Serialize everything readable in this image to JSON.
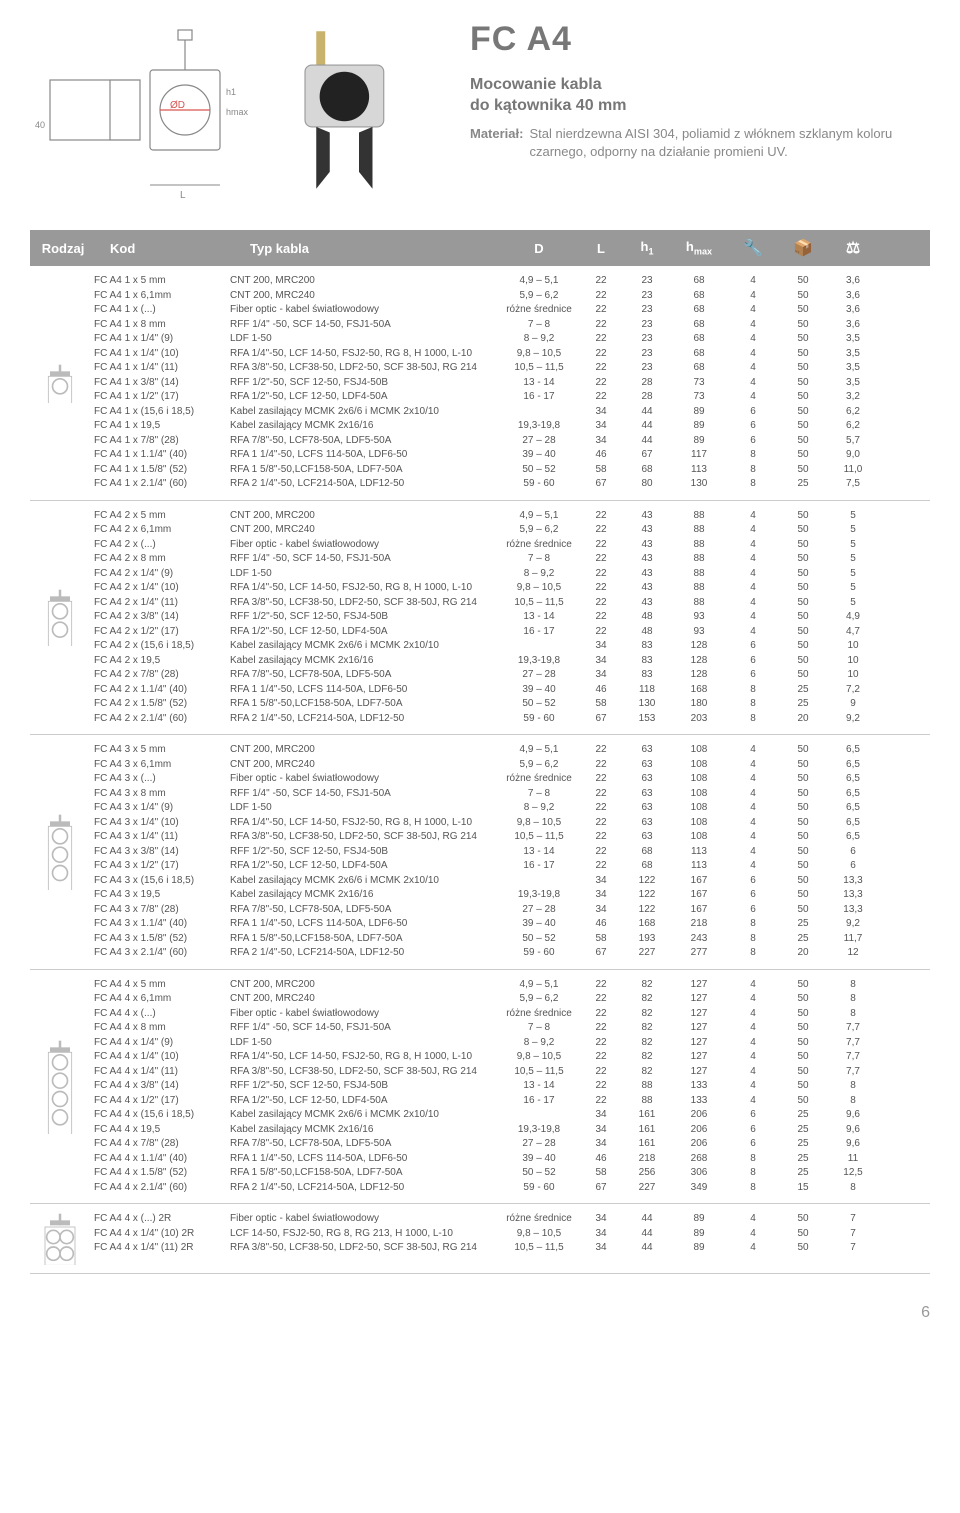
{
  "title": "FC A4",
  "subtitle": "Mocowanie kabla\ndo kątownika 40 mm",
  "material_label": "Materiał:",
  "material_text": "Stal nierdzewna AISI 304, poliamid z włóknem szklanym koloru czarnego, odporny na działanie promieni UV.",
  "page_number": "6",
  "diagram": {
    "labels": {
      "od": "ØD",
      "h1": "h1",
      "hmax": "hmax",
      "dim40": "40",
      "L": "L"
    },
    "stroke": "#888",
    "accent": "#d9534f"
  },
  "header": {
    "rodzaj": "Rodzaj",
    "kod": "Kod",
    "typ": "Typ kabla",
    "d": "D",
    "l": "L",
    "h1": "h1",
    "hmax": "hmax",
    "bg": "#999999",
    "fg": "#ffffff"
  },
  "icon_meta": {
    "wrench": "🔧",
    "box": "📦",
    "weight": "⚖"
  },
  "groups": [
    {
      "icon": "single",
      "rows": [
        [
          "FC A4 1 x 5 mm",
          "CNT 200, MRC200",
          "4,9 – 5,1",
          "22",
          "23",
          "68",
          "4",
          "50",
          "3,6"
        ],
        [
          "FC A4 1 x 6,1mm",
          "CNT 200, MRC240",
          "5,9 – 6,2",
          "22",
          "23",
          "68",
          "4",
          "50",
          "3,6"
        ],
        [
          "FC A4 1 x (...)",
          "Fiber optic - kabel światłowodowy",
          "różne średnice",
          "22",
          "23",
          "68",
          "4",
          "50",
          "3,6"
        ],
        [
          "FC A4 1 x 8 mm",
          "RFF 1/4\" -50, SCF 14-50, FSJ1-50A",
          "7 – 8",
          "22",
          "23",
          "68",
          "4",
          "50",
          "3,6"
        ],
        [
          "FC A4 1 x 1/4\" (9)",
          "LDF 1-50",
          "8 – 9,2",
          "22",
          "23",
          "68",
          "4",
          "50",
          "3,5"
        ],
        [
          "FC A4 1 x 1/4\" (10)",
          "RFA 1/4\"-50, LCF 14-50, FSJ2-50, RG 8, H 1000, L-10",
          "9,8 – 10,5",
          "22",
          "23",
          "68",
          "4",
          "50",
          "3,5"
        ],
        [
          "FC A4 1 x 1/4\" (11)",
          "RFA 3/8\"-50, LCF38-50, LDF2-50, SCF 38-50J, RG 214",
          "10,5 – 11,5",
          "22",
          "23",
          "68",
          "4",
          "50",
          "3,5"
        ],
        [
          "FC A4 1 x 3/8\" (14)",
          "RFF 1/2\"-50, SCF 12-50, FSJ4-50B",
          "13 - 14",
          "22",
          "28",
          "73",
          "4",
          "50",
          "3,5"
        ],
        [
          "FC A4 1 x 1/2\" (17)",
          "RFA 1/2\"-50, LCF 12-50, LDF4-50A",
          "16 - 17",
          "22",
          "28",
          "73",
          "4",
          "50",
          "3,2"
        ],
        [
          "FC A4 1 x (15,6 i 18,5)",
          "Kabel zasilający MCMK 2x6/6 i MCMK 2x10/10",
          "",
          "34",
          "44",
          "89",
          "6",
          "50",
          "6,2"
        ],
        [
          "FC A4 1 x 19,5",
          "Kabel zasilający MCMK 2x16/16",
          "19,3-19,8",
          "34",
          "44",
          "89",
          "6",
          "50",
          "6,2"
        ],
        [
          "FC A4 1 x 7/8\" (28)",
          "RFA 7/8\"-50, LCF78-50A, LDF5-50A",
          "27 – 28",
          "34",
          "44",
          "89",
          "6",
          "50",
          "5,7"
        ],
        [
          "FC A4 1 x 1.1/4\" (40)",
          "RFA 1 1/4\"-50, LCFS 114-50A, LDF6-50",
          "39 – 40",
          "46",
          "67",
          "117",
          "8",
          "50",
          "9,0"
        ],
        [
          "FC A4 1 x 1.5/8\" (52)",
          "RFA 1 5/8\"-50,LCF158-50A, LDF7-50A",
          "50 – 52",
          "58",
          "68",
          "113",
          "8",
          "50",
          "11,0"
        ],
        [
          "FC A4 1 x 2.1/4\" (60)",
          "RFA 2 1/4\"-50, LCF214-50A, LDF12-50",
          "59 - 60",
          "67",
          "80",
          "130",
          "8",
          "25",
          "7,5"
        ]
      ]
    },
    {
      "icon": "double",
      "rows": [
        [
          "FC A4 2 x 5 mm",
          "CNT 200, MRC200",
          "4,9 – 5,1",
          "22",
          "43",
          "88",
          "4",
          "50",
          "5"
        ],
        [
          "FC A4 2 x 6,1mm",
          "CNT 200, MRC240",
          "5,9 – 6,2",
          "22",
          "43",
          "88",
          "4",
          "50",
          "5"
        ],
        [
          "FC A4 2 x (...)",
          "Fiber optic - kabel światłowodowy",
          "różne średnice",
          "22",
          "43",
          "88",
          "4",
          "50",
          "5"
        ],
        [
          "FC A4 2 x 8 mm",
          "RFF 1/4\" -50, SCF 14-50, FSJ1-50A",
          "7 – 8",
          "22",
          "43",
          "88",
          "4",
          "50",
          "5"
        ],
        [
          "FC A4 2 x 1/4\" (9)",
          "LDF 1-50",
          "8 – 9,2",
          "22",
          "43",
          "88",
          "4",
          "50",
          "5"
        ],
        [
          "FC A4 2 x 1/4\" (10)",
          "RFA 1/4\"-50, LCF 14-50, FSJ2-50, RG 8, H 1000, L-10",
          "9,8 – 10,5",
          "22",
          "43",
          "88",
          "4",
          "50",
          "5"
        ],
        [
          "FC A4 2 x 1/4\" (11)",
          "RFA 3/8\"-50, LCF38-50, LDF2-50, SCF 38-50J, RG 214",
          "10,5 – 11,5",
          "22",
          "43",
          "88",
          "4",
          "50",
          "5"
        ],
        [
          "FC A4 2 x 3/8\" (14)",
          "RFF 1/2\"-50, SCF 12-50, FSJ4-50B",
          "13 - 14",
          "22",
          "48",
          "93",
          "4",
          "50",
          "4,9"
        ],
        [
          "FC A4 2 x 1/2\" (17)",
          "RFA 1/2\"-50, LCF 12-50, LDF4-50A",
          "16 - 17",
          "22",
          "48",
          "93",
          "4",
          "50",
          "4,7"
        ],
        [
          "FC A4 2 x (15,6 i 18,5)",
          "Kabel zasilający MCMK 2x6/6 i MCMK 2x10/10",
          "",
          "34",
          "83",
          "128",
          "6",
          "50",
          "10"
        ],
        [
          "FC A4 2 x 19,5",
          "Kabel zasilający MCMK 2x16/16",
          "19,3-19,8",
          "34",
          "83",
          "128",
          "6",
          "50",
          "10"
        ],
        [
          "FC A4 2 x 7/8\" (28)",
          "RFA 7/8\"-50, LCF78-50A, LDF5-50A",
          "27 – 28",
          "34",
          "83",
          "128",
          "6",
          "50",
          "10"
        ],
        [
          "FC A4 2 x 1.1/4\" (40)",
          "RFA 1 1/4\"-50, LCFS 114-50A, LDF6-50",
          "39 – 40",
          "46",
          "118",
          "168",
          "8",
          "25",
          "7,2"
        ],
        [
          "FC A4 2 x 1.5/8\" (52)",
          "RFA 1 5/8\"-50,LCF158-50A, LDF7-50A",
          "50 – 52",
          "58",
          "130",
          "180",
          "8",
          "25",
          "9"
        ],
        [
          "FC A4 2 x 2.1/4\" (60)",
          "RFA 2 1/4\"-50, LCF214-50A, LDF12-50",
          "59 - 60",
          "67",
          "153",
          "203",
          "8",
          "20",
          "9,2"
        ]
      ]
    },
    {
      "icon": "triple",
      "rows": [
        [
          "FC A4 3 x 5 mm",
          "CNT 200, MRC200",
          "4,9 – 5,1",
          "22",
          "63",
          "108",
          "4",
          "50",
          "6,5"
        ],
        [
          "FC A4 3 x 6,1mm",
          "CNT 200, MRC240",
          "5,9 – 6,2",
          "22",
          "63",
          "108",
          "4",
          "50",
          "6,5"
        ],
        [
          "FC A4 3 x (...)",
          "Fiber optic - kabel światłowodowy",
          "różne średnice",
          "22",
          "63",
          "108",
          "4",
          "50",
          "6,5"
        ],
        [
          "FC A4 3 x 8 mm",
          "RFF 1/4\" -50, SCF 14-50, FSJ1-50A",
          "7 – 8",
          "22",
          "63",
          "108",
          "4",
          "50",
          "6,5"
        ],
        [
          "FC A4 3 x 1/4\" (9)",
          "LDF 1-50",
          "8 – 9,2",
          "22",
          "63",
          "108",
          "4",
          "50",
          "6,5"
        ],
        [
          "FC A4 3 x 1/4\" (10)",
          "RFA 1/4\"-50, LCF 14-50, FSJ2-50, RG 8, H 1000, L-10",
          "9,8 – 10,5",
          "22",
          "63",
          "108",
          "4",
          "50",
          "6,5"
        ],
        [
          "FC A4 3 x 1/4\" (11)",
          "RFA 3/8\"-50, LCF38-50, LDF2-50, SCF 38-50J, RG 214",
          "10,5 – 11,5",
          "22",
          "63",
          "108",
          "4",
          "50",
          "6,5"
        ],
        [
          "FC A4 3 x 3/8\" (14)",
          "RFF 1/2\"-50, SCF 12-50, FSJ4-50B",
          "13 - 14",
          "22",
          "68",
          "113",
          "4",
          "50",
          "6"
        ],
        [
          "FC A4 3 x 1/2\" (17)",
          "RFA 1/2\"-50, LCF 12-50, LDF4-50A",
          "16 - 17",
          "22",
          "68",
          "113",
          "4",
          "50",
          "6"
        ],
        [
          "FC A4 3 x (15,6 i 18,5)",
          "Kabel zasilający MCMK 2x6/6 i MCMK 2x10/10",
          "",
          "34",
          "122",
          "167",
          "6",
          "50",
          "13,3"
        ],
        [
          "FC A4 3 x 19,5",
          "Kabel zasilający MCMK 2x16/16",
          "19,3-19,8",
          "34",
          "122",
          "167",
          "6",
          "50",
          "13,3"
        ],
        [
          "FC A4 3 x 7/8\" (28)",
          "RFA 7/8\"-50, LCF78-50A, LDF5-50A",
          "27 – 28",
          "34",
          "122",
          "167",
          "6",
          "50",
          "13,3"
        ],
        [
          "FC A4 3 x 1.1/4\" (40)",
          "RFA 1 1/4\"-50, LCFS 114-50A, LDF6-50",
          "39 – 40",
          "46",
          "168",
          "218",
          "8",
          "25",
          "9,2"
        ],
        [
          "FC A4 3 x 1.5/8\" (52)",
          "RFA 1 5/8\"-50,LCF158-50A, LDF7-50A",
          "50 – 52",
          "58",
          "193",
          "243",
          "8",
          "25",
          "11,7"
        ],
        [
          "FC A4 3 x 2.1/4\" (60)",
          "RFA 2 1/4\"-50, LCF214-50A, LDF12-50",
          "59 - 60",
          "67",
          "227",
          "277",
          "8",
          "20",
          "12"
        ]
      ]
    },
    {
      "icon": "quad",
      "rows": [
        [
          "FC A4 4 x 5 mm",
          "CNT 200, MRC200",
          "4,9 – 5,1",
          "22",
          "82",
          "127",
          "4",
          "50",
          "8"
        ],
        [
          "FC A4 4 x 6,1mm",
          "CNT 200, MRC240",
          "5,9 – 6,2",
          "22",
          "82",
          "127",
          "4",
          "50",
          "8"
        ],
        [
          "FC A4 4 x (...)",
          "Fiber optic - kabel światłowodowy",
          "różne średnice",
          "22",
          "82",
          "127",
          "4",
          "50",
          "8"
        ],
        [
          "FC A4 4 x 8 mm",
          "RFF 1/4\" -50, SCF 14-50, FSJ1-50A",
          "7 – 8",
          "22",
          "82",
          "127",
          "4",
          "50",
          "7,7"
        ],
        [
          "FC A4 4 x 1/4\" (9)",
          "LDF 1-50",
          "8 – 9,2",
          "22",
          "82",
          "127",
          "4",
          "50",
          "7,7"
        ],
        [
          "FC A4 4 x 1/4\" (10)",
          "RFA 1/4\"-50, LCF 14-50, FSJ2-50, RG 8, H 1000, L-10",
          "9,8 – 10,5",
          "22",
          "82",
          "127",
          "4",
          "50",
          "7,7"
        ],
        [
          "FC A4 4 x 1/4\" (11)",
          "RFA 3/8\"-50, LCF38-50, LDF2-50, SCF 38-50J, RG 214",
          "10,5 – 11,5",
          "22",
          "82",
          "127",
          "4",
          "50",
          "7,7"
        ],
        [
          "FC A4 4 x 3/8\" (14)",
          "RFF 1/2\"-50, SCF 12-50, FSJ4-50B",
          "13 - 14",
          "22",
          "88",
          "133",
          "4",
          "50",
          "8"
        ],
        [
          "FC A4 4 x 1/2\" (17)",
          "RFA 1/2\"-50, LCF 12-50, LDF4-50A",
          "16 - 17",
          "22",
          "88",
          "133",
          "4",
          "50",
          "8"
        ],
        [
          "FC A4 4 x (15,6 i 18,5)",
          "Kabel zasilający MCMK 2x6/6 i MCMK 2x10/10",
          "",
          "34",
          "161",
          "206",
          "6",
          "25",
          "9,6"
        ],
        [
          "FC A4 4 x 19,5",
          "Kabel zasilający MCMK 2x16/16",
          "19,3-19,8",
          "34",
          "161",
          "206",
          "6",
          "25",
          "9,6"
        ],
        [
          "FC A4 4 x 7/8\" (28)",
          "RFA 7/8\"-50, LCF78-50A, LDF5-50A",
          "27 – 28",
          "34",
          "161",
          "206",
          "6",
          "25",
          "9,6"
        ],
        [
          "FC A4 4 x 1.1/4\" (40)",
          "RFA 1 1/4\"-50, LCFS 114-50A, LDF6-50",
          "39 – 40",
          "46",
          "218",
          "268",
          "8",
          "25",
          "11"
        ],
        [
          "FC A4 4 x 1.5/8\" (52)",
          "RFA 1 5/8\"-50,LCF158-50A, LDF7-50A",
          "50 – 52",
          "58",
          "256",
          "306",
          "8",
          "25",
          "12,5"
        ],
        [
          "FC A4 4 x 2.1/4\" (60)",
          "RFA 2 1/4\"-50, LCF214-50A, LDF12-50",
          "59 - 60",
          "67",
          "227",
          "349",
          "8",
          "15",
          "8"
        ]
      ]
    },
    {
      "icon": "quad2r",
      "rows": [
        [
          "FC A4 4 x (...) 2R",
          "Fiber optic - kabel światłowodowy",
          "różne średnice",
          "34",
          "44",
          "89",
          "4",
          "50",
          "7"
        ],
        [
          "FC A4 4 x 1/4\" (10) 2R",
          "LCF 14-50, FSJ2-50, RG 8, RG 213, H 1000, L-10",
          "9,8 – 10,5",
          "34",
          "44",
          "89",
          "4",
          "50",
          "7"
        ],
        [
          "FC A4 4 x 1/4\" (11) 2R",
          "RFA 3/8\"-50, LCF38-50, LDF2-50, SCF 38-50J, RG 214",
          "10,5 – 11,5",
          "34",
          "44",
          "89",
          "4",
          "50",
          "7"
        ]
      ]
    }
  ]
}
